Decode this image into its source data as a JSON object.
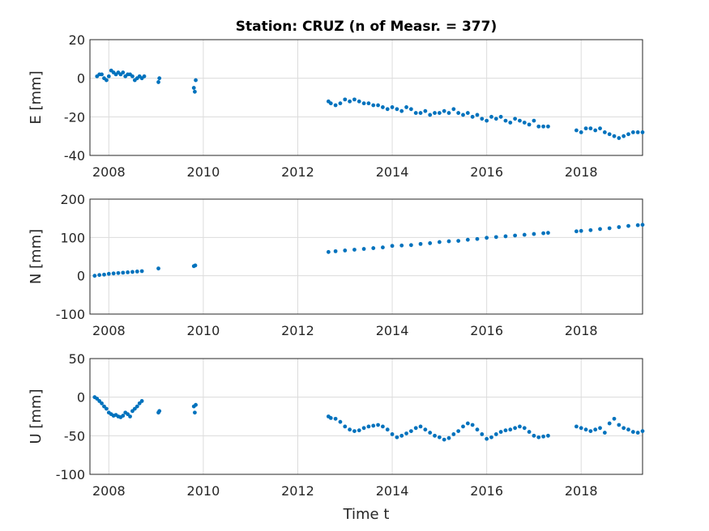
{
  "title": "Station: CRUZ (n of Measr. = 377)",
  "xlabel": "Time t",
  "colors": {
    "marker": "#0072BD",
    "grid": "#dcdcdc",
    "axis": "#262626"
  },
  "chart_data": [
    {
      "type": "scatter",
      "ylabel": "E [mm]",
      "xlim": [
        2007.6,
        2019.3
      ],
      "ylim": [
        -40,
        20
      ],
      "xticks": [
        "2008",
        "2010",
        "2012",
        "2014",
        "2016",
        "2018"
      ],
      "yticks": [
        "20",
        "0",
        "-20",
        "-40"
      ],
      "grid": true,
      "series": [
        {
          "x": [
            2007.75,
            2007.8,
            2007.85,
            2007.9,
            2007.95,
            2008.0,
            2008.05,
            2008.1,
            2008.15,
            2008.2,
            2008.25,
            2008.3,
            2008.35,
            2008.4,
            2008.45,
            2008.5,
            2008.55,
            2008.6,
            2008.65,
            2008.7,
            2008.75,
            2009.05,
            2009.07,
            2009.8,
            2009.82,
            2009.84,
            2012.65,
            2012.7,
            2012.8,
            2012.9,
            2013.0,
            2013.1,
            2013.2,
            2013.3,
            2013.4,
            2013.5,
            2013.6,
            2013.7,
            2013.8,
            2013.9,
            2014.0,
            2014.1,
            2014.2,
            2014.3,
            2014.4,
            2014.5,
            2014.6,
            2014.7,
            2014.8,
            2014.9,
            2015.0,
            2015.1,
            2015.2,
            2015.3,
            2015.4,
            2015.5,
            2015.6,
            2015.7,
            2015.8,
            2015.9,
            2016.0,
            2016.1,
            2016.2,
            2016.3,
            2016.4,
            2016.5,
            2016.6,
            2016.7,
            2016.8,
            2016.9,
            2017.0,
            2017.1,
            2017.2,
            2017.3,
            2017.9,
            2018.0,
            2018.1,
            2018.2,
            2018.3,
            2018.4,
            2018.5,
            2018.6,
            2018.7,
            2018.8,
            2018.9,
            2019.0,
            2019.1,
            2019.2,
            2019.3
          ],
          "y": [
            1,
            2,
            2,
            0,
            -1,
            1,
            4,
            3,
            2,
            3,
            2,
            3,
            1,
            2,
            2,
            1,
            -1,
            0,
            1,
            0,
            1,
            -2,
            0,
            -5,
            -7,
            -1,
            -12,
            -13,
            -14,
            -13,
            -11,
            -12,
            -11,
            -12,
            -13,
            -13,
            -14,
            -14,
            -15,
            -16,
            -15,
            -16,
            -17,
            -15,
            -16,
            -18,
            -18,
            -17,
            -19,
            -18,
            -18,
            -17,
            -18,
            -16,
            -18,
            -19,
            -18,
            -20,
            -19,
            -21,
            -22,
            -20,
            -21,
            -20,
            -22,
            -23,
            -21,
            -22,
            -23,
            -24,
            -22,
            -25,
            -25,
            -25,
            -27,
            -28,
            -26,
            -26,
            -27,
            -26,
            -28,
            -29,
            -30,
            -31,
            -30,
            -29,
            -28,
            -28,
            -28
          ]
        }
      ]
    },
    {
      "type": "scatter",
      "ylabel": "N [mm]",
      "xlim": [
        2007.6,
        2019.3
      ],
      "ylim": [
        -100,
        200
      ],
      "xticks": [
        "2008",
        "2010",
        "2012",
        "2014",
        "2016",
        "2018"
      ],
      "yticks": [
        "200",
        "100",
        "0",
        "-100"
      ],
      "grid": true,
      "series": [
        {
          "x": [
            2007.7,
            2007.8,
            2007.9,
            2008.0,
            2008.1,
            2008.2,
            2008.3,
            2008.4,
            2008.5,
            2008.6,
            2008.7,
            2009.05,
            2009.8,
            2009.83,
            2012.65,
            2012.8,
            2013.0,
            2013.2,
            2013.4,
            2013.6,
            2013.8,
            2014.0,
            2014.2,
            2014.4,
            2014.6,
            2014.8,
            2015.0,
            2015.2,
            2015.4,
            2015.6,
            2015.8,
            2016.0,
            2016.2,
            2016.4,
            2016.6,
            2016.8,
            2017.0,
            2017.2,
            2017.3,
            2017.9,
            2018.0,
            2018.2,
            2018.4,
            2018.6,
            2018.8,
            2019.0,
            2019.2,
            2019.3
          ],
          "y": [
            0,
            2,
            3,
            5,
            6,
            7,
            8,
            9,
            10,
            11,
            12,
            19,
            25,
            27,
            62,
            64,
            66,
            68,
            70,
            72,
            74,
            78,
            79,
            80,
            83,
            85,
            88,
            90,
            91,
            94,
            96,
            99,
            101,
            103,
            105,
            107,
            109,
            111,
            112,
            116,
            117,
            119,
            122,
            124,
            127,
            130,
            132,
            133
          ]
        }
      ]
    },
    {
      "type": "scatter",
      "ylabel": "U [mm]",
      "xlim": [
        2007.6,
        2019.3
      ],
      "ylim": [
        -100,
        50
      ],
      "xticks": [
        "2008",
        "2010",
        "2012",
        "2014",
        "2016",
        "2018"
      ],
      "yticks": [
        "50",
        "0",
        "-50",
        "-100"
      ],
      "grid": true,
      "series": [
        {
          "x": [
            2007.7,
            2007.75,
            2007.8,
            2007.85,
            2007.9,
            2007.95,
            2008.0,
            2008.05,
            2008.1,
            2008.15,
            2008.2,
            2008.25,
            2008.3,
            2008.35,
            2008.4,
            2008.45,
            2008.5,
            2008.55,
            2008.6,
            2008.65,
            2008.7,
            2009.05,
            2009.07,
            2009.8,
            2009.82,
            2009.84,
            2012.65,
            2012.7,
            2012.8,
            2012.9,
            2013.0,
            2013.1,
            2013.2,
            2013.3,
            2013.4,
            2013.5,
            2013.6,
            2013.7,
            2013.8,
            2013.9,
            2014.0,
            2014.1,
            2014.2,
            2014.3,
            2014.4,
            2014.5,
            2014.6,
            2014.7,
            2014.8,
            2014.9,
            2015.0,
            2015.1,
            2015.2,
            2015.3,
            2015.4,
            2015.5,
            2015.6,
            2015.7,
            2015.8,
            2015.9,
            2016.0,
            2016.1,
            2016.2,
            2016.3,
            2016.4,
            2016.5,
            2016.6,
            2016.7,
            2016.8,
            2016.9,
            2017.0,
            2017.1,
            2017.2,
            2017.3,
            2017.9,
            2018.0,
            2018.1,
            2018.2,
            2018.3,
            2018.4,
            2018.5,
            2018.6,
            2018.7,
            2018.8,
            2018.9,
            2019.0,
            2019.1,
            2019.2,
            2019.3
          ],
          "y": [
            0,
            -2,
            -5,
            -8,
            -12,
            -15,
            -20,
            -22,
            -24,
            -23,
            -25,
            -26,
            -24,
            -20,
            -22,
            -25,
            -18,
            -15,
            -12,
            -8,
            -5,
            -20,
            -18,
            -12,
            -20,
            -10,
            -25,
            -27,
            -28,
            -32,
            -38,
            -42,
            -44,
            -43,
            -40,
            -38,
            -37,
            -36,
            -38,
            -42,
            -48,
            -52,
            -50,
            -47,
            -44,
            -40,
            -38,
            -42,
            -46,
            -50,
            -52,
            -55,
            -53,
            -48,
            -44,
            -38,
            -34,
            -36,
            -42,
            -48,
            -54,
            -52,
            -48,
            -45,
            -43,
            -42,
            -40,
            -38,
            -40,
            -45,
            -50,
            -52,
            -51,
            -50,
            -38,
            -40,
            -42,
            -44,
            -42,
            -40,
            -46,
            -34,
            -28,
            -36,
            -40,
            -42,
            -45,
            -46,
            -44
          ]
        }
      ]
    }
  ]
}
